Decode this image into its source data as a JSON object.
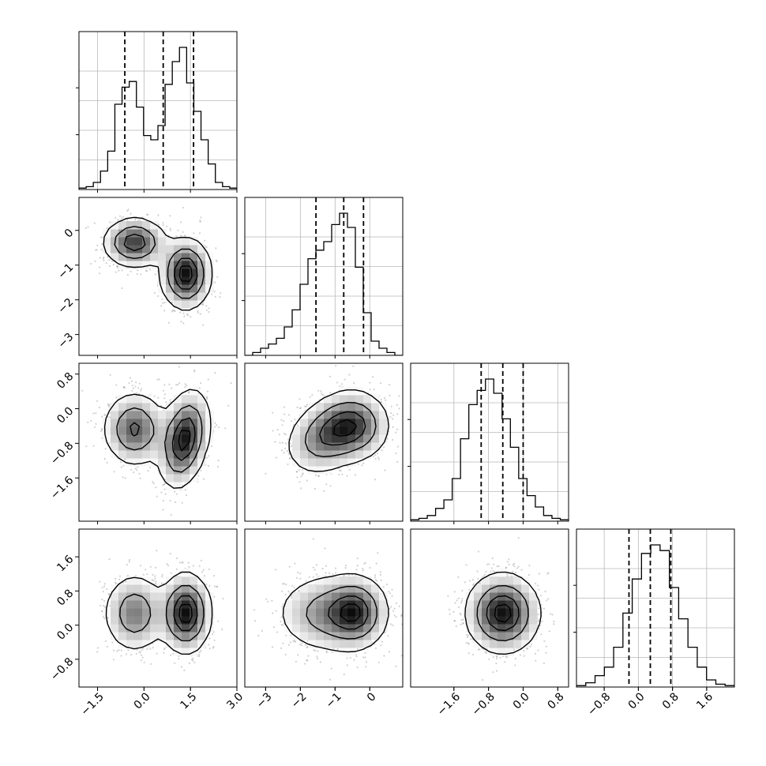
{
  "chart_data": {
    "type": "corner",
    "title": "",
    "n_params": 4,
    "colors": {
      "line": "#000000",
      "grid": "#b8b8b8",
      "scatter": "#7a7a7a",
      "density_dark": "#0a0a0a",
      "background": "#ffffff"
    },
    "grid": true,
    "quantile_levels": [
      0.16,
      0.5,
      0.84
    ],
    "parameters": [
      {
        "range": [
          -2.1,
          3.0
        ],
        "ticks": [
          -1.5,
          0.0,
          1.5,
          3.0
        ],
        "tick_labels": [
          "−1.5",
          "0.0",
          "1.5",
          "3.0"
        ],
        "quantiles": [
          -0.62,
          0.62,
          1.6
        ],
        "mixture": [
          {
            "w": 0.42,
            "mu": -0.3,
            "sd": 0.48
          },
          {
            "w": 0.58,
            "mu": 1.35,
            "sd": 0.45
          }
        ]
      },
      {
        "range": [
          -3.6,
          0.95
        ],
        "ticks": [
          -3,
          -2,
          -1,
          0
        ],
        "tick_labels": [
          "−3",
          "−2",
          "−1",
          "0"
        ],
        "quantiles": [
          -1.55,
          -0.75,
          -0.18
        ],
        "mixture": [
          {
            "w": 0.42,
            "mu": -0.35,
            "sd": 0.4
          },
          {
            "w": 0.58,
            "mu": -1.2,
            "sd": 0.55
          }
        ]
      },
      {
        "range": [
          -2.6,
          1.05
        ],
        "ticks": [
          -1.6,
          -0.8,
          0.0,
          0.8
        ],
        "tick_labels": [
          "−1.6",
          "−0.8",
          "0.0",
          "0.8"
        ],
        "quantiles": [
          -0.97,
          -0.47,
          0.0
        ],
        "mixture": [
          {
            "w": 0.5,
            "mu": -0.47,
            "sd": 0.42
          }
        ]
      },
      {
        "range": [
          -1.45,
          2.25
        ],
        "ticks": [
          -0.8,
          0.0,
          0.8,
          1.6
        ],
        "tick_labels": [
          "−0.8",
          "0.0",
          "0.8",
          "1.6"
        ],
        "quantiles": [
          -0.22,
          0.28,
          0.76
        ],
        "mixture": [
          {
            "w": 1.0,
            "mu": 0.28,
            "sd": 0.46
          }
        ]
      }
    ],
    "marginal_histograms": [
      {
        "param": 0,
        "relative_heights": [
          0.01,
          0.02,
          0.05,
          0.13,
          0.27,
          0.6,
          0.72,
          0.76,
          0.58,
          0.38,
          0.35,
          0.45,
          0.74,
          0.9,
          1.0,
          0.75,
          0.55,
          0.35,
          0.18,
          0.05,
          0.02,
          0.01
        ]
      },
      {
        "param": 1,
        "relative_heights": [
          0.0,
          0.02,
          0.05,
          0.08,
          0.12,
          0.2,
          0.32,
          0.5,
          0.68,
          0.74,
          0.8,
          0.92,
          1.0,
          0.9,
          0.62,
          0.3,
          0.1,
          0.05,
          0.02,
          0.0
        ]
      },
      {
        "param": 2,
        "relative_heights": [
          0.01,
          0.02,
          0.04,
          0.09,
          0.15,
          0.3,
          0.58,
          0.82,
          0.92,
          1.0,
          0.9,
          0.72,
          0.52,
          0.3,
          0.18,
          0.1,
          0.04,
          0.02,
          0.01
        ]
      },
      {
        "param": 3,
        "relative_heights": [
          0.01,
          0.03,
          0.08,
          0.14,
          0.28,
          0.52,
          0.76,
          0.94,
          1.0,
          0.96,
          0.7,
          0.48,
          0.28,
          0.14,
          0.05,
          0.02,
          0.01
        ]
      }
    ],
    "joint_panels": [
      {
        "row": 1,
        "col": 0,
        "modes": [
          {
            "w": 0.42,
            "mx": -0.3,
            "my": -0.35,
            "sx": 0.5,
            "sy": 0.35,
            "rho": 0.0
          },
          {
            "w": 0.58,
            "mx": 1.35,
            "my": -1.25,
            "sx": 0.4,
            "sy": 0.5,
            "rho": 0.0
          }
        ]
      },
      {
        "row": 2,
        "col": 0,
        "modes": [
          {
            "w": 0.42,
            "mx": -0.3,
            "my": -0.47,
            "sx": 0.5,
            "sy": 0.42,
            "rho": 0.0
          },
          {
            "w": 0.58,
            "mx": 1.3,
            "my": -0.7,
            "sx": 0.4,
            "sy": 0.55,
            "rho": 0.3
          }
        ]
      },
      {
        "row": 2,
        "col": 1,
        "modes": [
          {
            "w": 0.42,
            "mx": -0.4,
            "my": -0.4,
            "sx": 0.5,
            "sy": 0.4,
            "rho": 0.0
          },
          {
            "w": 0.58,
            "mx": -1.2,
            "my": -0.6,
            "sx": 0.6,
            "sy": 0.45,
            "rho": 0.3
          }
        ]
      },
      {
        "row": 3,
        "col": 0,
        "modes": [
          {
            "w": 0.42,
            "mx": -0.3,
            "my": 0.28,
            "sx": 0.5,
            "sy": 0.46,
            "rho": 0.0
          },
          {
            "w": 0.58,
            "mx": 1.35,
            "my": 0.28,
            "sx": 0.4,
            "sy": 0.46,
            "rho": 0.0
          }
        ]
      },
      {
        "row": 3,
        "col": 1,
        "modes": [
          {
            "w": 0.42,
            "mx": -0.4,
            "my": 0.3,
            "sx": 0.45,
            "sy": 0.42,
            "rho": 0.0
          },
          {
            "w": 0.58,
            "mx": -1.2,
            "my": 0.28,
            "sx": 0.75,
            "sy": 0.46,
            "rho": 0.0
          }
        ]
      },
      {
        "row": 3,
        "col": 2,
        "modes": [
          {
            "w": 1.0,
            "mx": -0.47,
            "my": 0.28,
            "sx": 0.42,
            "sy": 0.46,
            "rho": 0.0
          }
        ]
      }
    ]
  }
}
